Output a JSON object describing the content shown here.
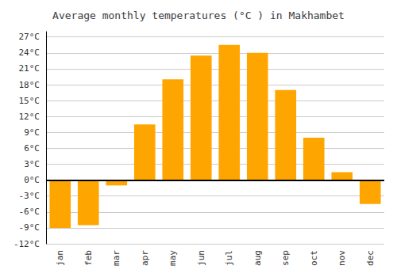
{
  "chart_data": {
    "type": "bar",
    "title": "Average monthly temperatures (°C ) in Makhambet",
    "categories": [
      "jan",
      "feb",
      "mar",
      "apr",
      "may",
      "jun",
      "jul",
      "aug",
      "sep",
      "oct",
      "nov",
      "dec"
    ],
    "values": [
      -9,
      -8.5,
      -1,
      10.5,
      19,
      23.5,
      25.5,
      24,
      17,
      8,
      1.5,
      -4.5
    ],
    "color": "#FFA500",
    "ylim": [
      -12,
      28
    ],
    "yticks": [
      {
        "value": -12,
        "label": "-12°C"
      },
      {
        "value": -9,
        "label": "-9°C"
      },
      {
        "value": -6,
        "label": "-6°C"
      },
      {
        "value": -3,
        "label": "-3°C"
      },
      {
        "value": 0,
        "label": "0°C"
      },
      {
        "value": 3,
        "label": "3°C"
      },
      {
        "value": 6,
        "label": "6°C"
      },
      {
        "value": 9,
        "label": "9°C"
      },
      {
        "value": 12,
        "label": "12°C"
      },
      {
        "value": 15,
        "label": "15°C"
      },
      {
        "value": 18,
        "label": "18°C"
      },
      {
        "value": 21,
        "label": "21°C"
      },
      {
        "value": 24,
        "label": "24°C"
      },
      {
        "value": 27,
        "label": "27°C"
      }
    ],
    "grid": true
  }
}
